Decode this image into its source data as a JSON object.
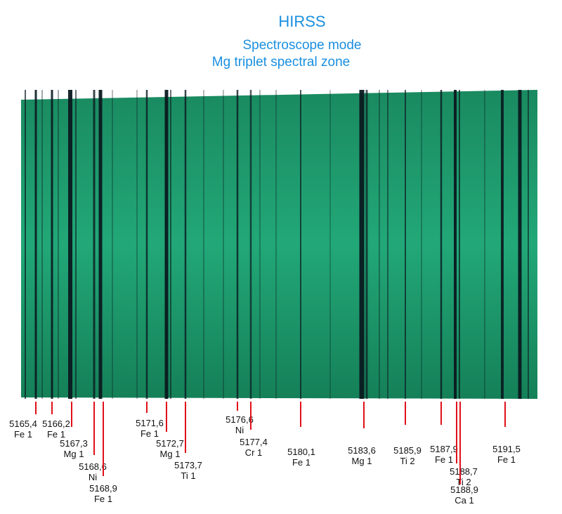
{
  "title": "HIRSS",
  "subtitle": "Spectroscope mode",
  "zone": "Mg triplet spectral zone",
  "lines": [
    {
      "wavelength": "5165,4",
      "element": "Fe 1"
    },
    {
      "wavelength": "5166,2",
      "element": "Fe 1"
    },
    {
      "wavelength": "5167,3",
      "element": "Mg 1"
    },
    {
      "wavelength": "5168,6",
      "element": "Ni"
    },
    {
      "wavelength": "5168,9",
      "element": "Fe 1"
    },
    {
      "wavelength": "5171,6",
      "element": "Fe 1"
    },
    {
      "wavelength": "5172,7",
      "element": "Mg 1"
    },
    {
      "wavelength": "5173,7",
      "element": "Ti 1"
    },
    {
      "wavelength": "5176,6",
      "element": "Ni"
    },
    {
      "wavelength": "5177,4",
      "element": "Cr 1"
    },
    {
      "wavelength": "5180,1",
      "element": "Fe 1"
    },
    {
      "wavelength": "5183,6",
      "element": "Mg 1"
    },
    {
      "wavelength": "5185,9",
      "element": "Ti 2"
    },
    {
      "wavelength": "5187,9",
      "element": "Fe 1"
    },
    {
      "wavelength": "5188,7",
      "element": "Ti 2"
    },
    {
      "wavelength": "5188,9",
      "element": "Ca 1"
    },
    {
      "wavelength": "5191,5",
      "element": "Fe 1"
    }
  ]
}
